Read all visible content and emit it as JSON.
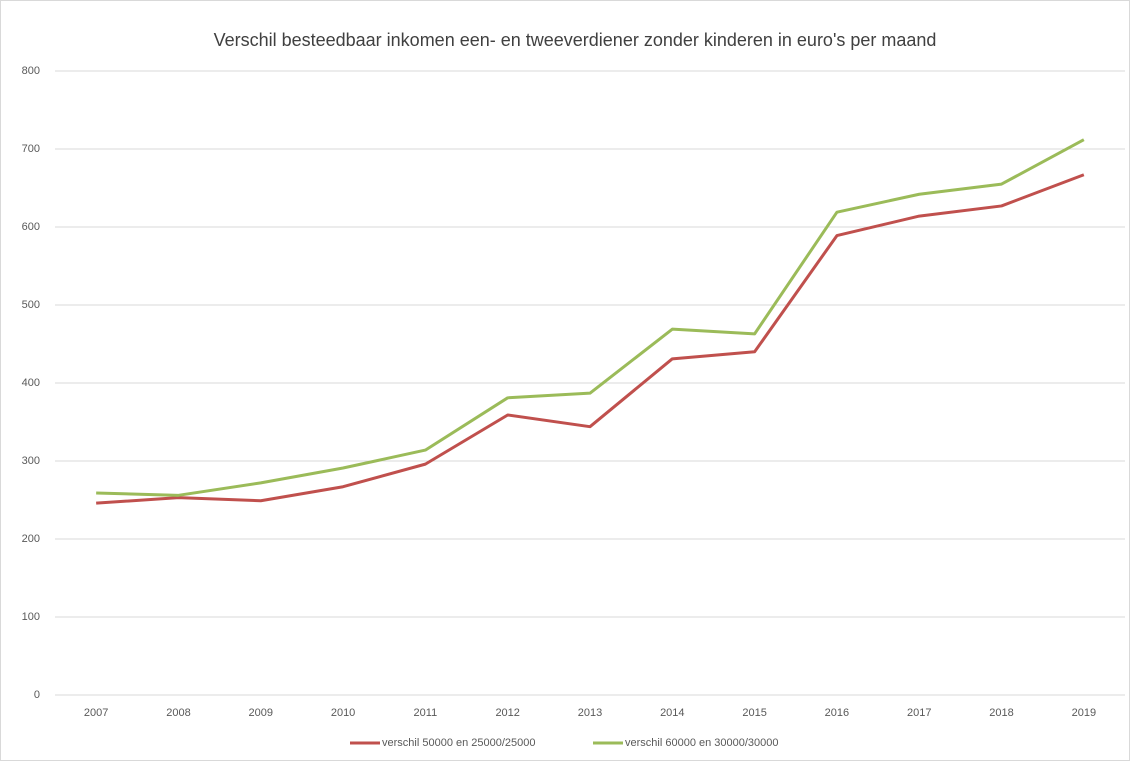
{
  "chart_data": {
    "type": "line",
    "title": "Verschil besteedbaar inkomen een- en tweeverdiener zonder kinderen in euro's per maand",
    "categories": [
      "2007",
      "2008",
      "2009",
      "2010",
      "2011",
      "2012",
      "2013",
      "2014",
      "2015",
      "2016",
      "2017",
      "2018",
      "2019"
    ],
    "series": [
      {
        "name": "verschil 50000 en 25000/25000",
        "color": "#c0504d",
        "values": [
          246,
          253,
          249,
          267,
          296,
          359,
          344,
          431,
          440,
          589,
          614,
          627,
          667
        ]
      },
      {
        "name": "verschil 60000 en 30000/30000",
        "color": "#9bbb59",
        "values": [
          259,
          256,
          272,
          291,
          314,
          381,
          387,
          469,
          463,
          619,
          642,
          655,
          712
        ]
      }
    ],
    "ylim": [
      0,
      800
    ],
    "yticks": [
      0,
      100,
      200,
      300,
      400,
      500,
      600,
      700,
      800
    ],
    "grid": true,
    "legend": "bottom"
  }
}
